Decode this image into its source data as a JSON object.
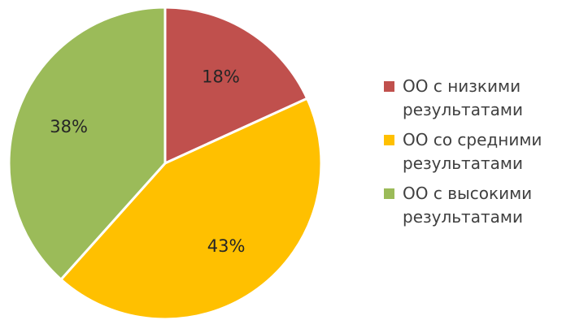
{
  "chart_data": {
    "type": "pie",
    "title": "",
    "categories": [
      "ОО с низкими\nрезультатами",
      "ОО со средними\nрезультатами",
      "ОО с высокими\nрезультатами"
    ],
    "values": [
      18,
      43,
      38
    ],
    "value_labels": [
      "18%",
      "43%",
      "38%"
    ],
    "colors": [
      "#C0504D",
      "#FFC000",
      "#9BBB59"
    ],
    "start_angle": "12 o'clock",
    "direction": "clockwise",
    "legend": {
      "position": "right",
      "items": [
        {
          "label": "ОО с низкими\nрезультатами",
          "color": "#C0504D"
        },
        {
          "label": "ОО со средними\nрезультатами",
          "color": "#FFC000"
        },
        {
          "label": "ОО с высокими\nрезультатами",
          "color": "#9BBB59"
        }
      ]
    }
  }
}
